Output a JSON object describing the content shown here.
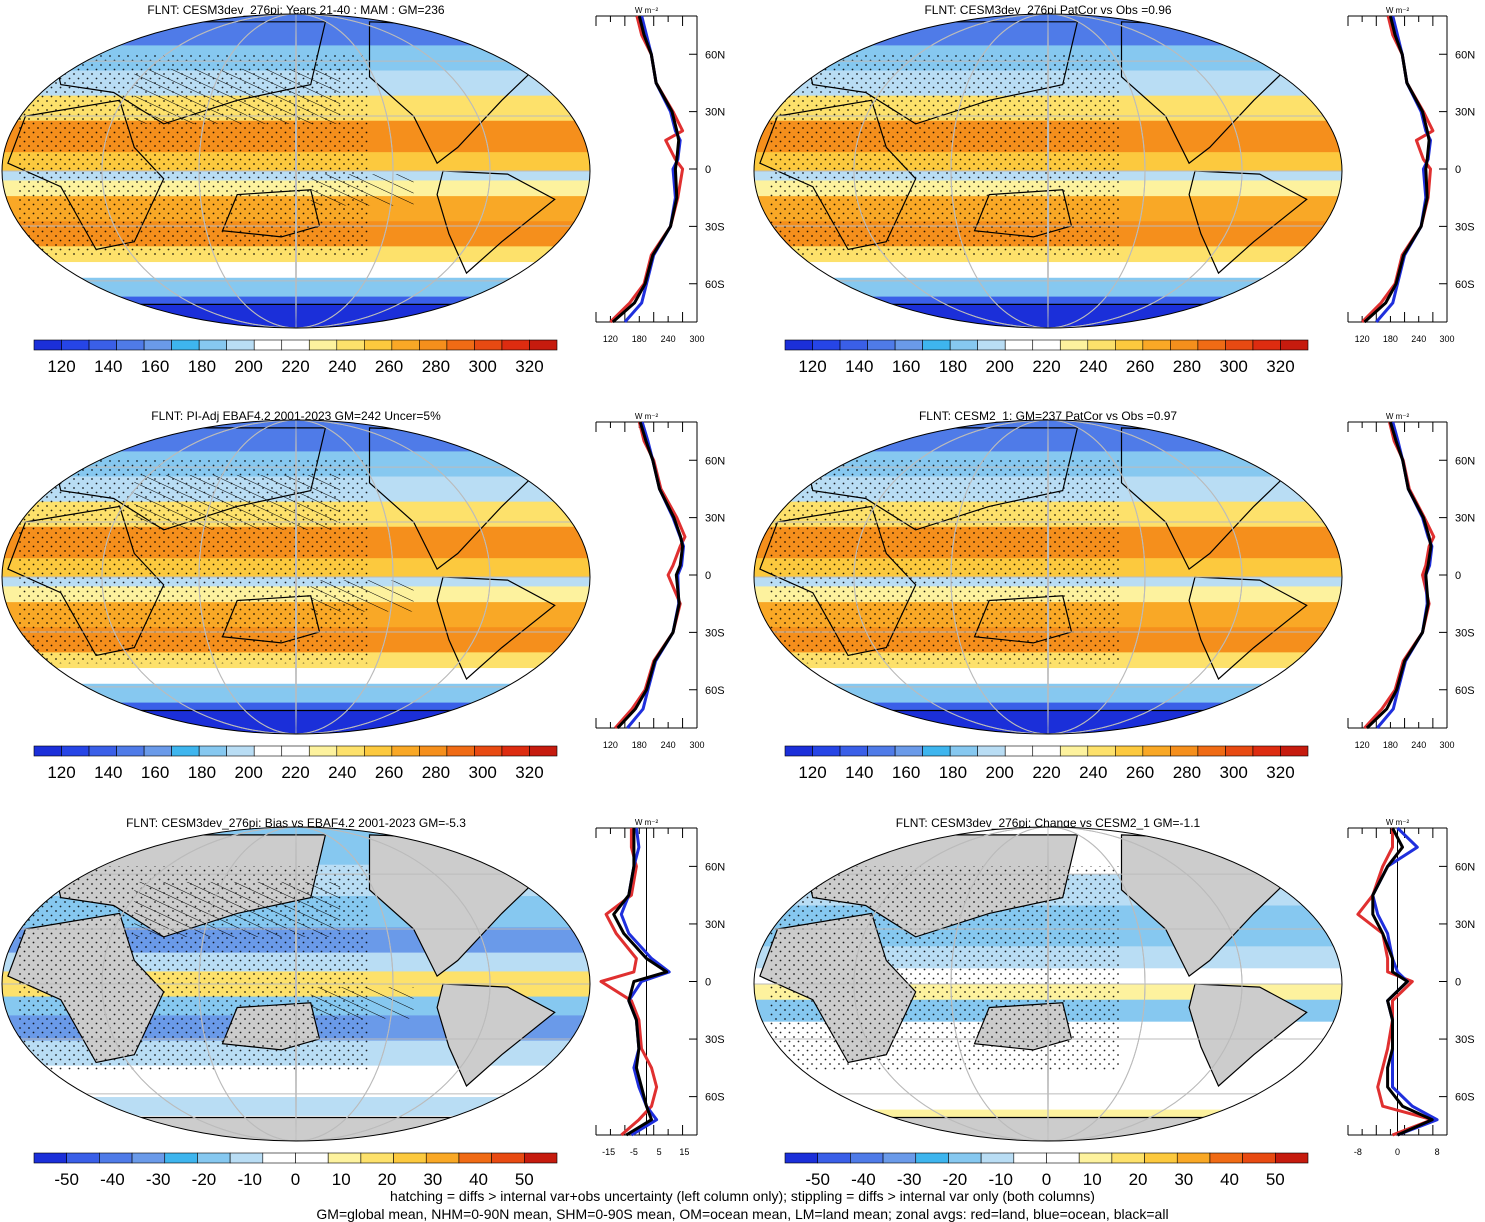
{
  "panels": [
    {
      "id": "p1",
      "title": "FLNT: CESM3dev_276pi: Years 21-40 : MAM : GM=236",
      "hatch": true,
      "cbar": {
        "labels": [
          "120",
          "140",
          "160",
          "180",
          "200",
          "220",
          "240",
          "260",
          "280",
          "300",
          "320"
        ]
      },
      "zonal": {
        "unit": "W m⁻²",
        "xticks": [
          "120",
          "180",
          "240",
          "300"
        ],
        "xlim": [
          90,
          300
        ],
        "lat": [
          -80,
          -70,
          -60,
          -45,
          -30,
          -15,
          0,
          5,
          15,
          20,
          30,
          45,
          60,
          70,
          80
        ],
        "land": [
          120,
          160,
          190,
          205,
          245,
          260,
          270,
          255,
          235,
          270,
          250,
          215,
          205,
          185,
          175
        ],
        "ocean": [
          150,
          185,
          195,
          210,
          245,
          255,
          250,
          260,
          265,
          255,
          245,
          215,
          205,
          195,
          185
        ],
        "all": [
          125,
          170,
          192,
          208,
          245,
          258,
          255,
          258,
          262,
          258,
          248,
          215,
          205,
          190,
          180
        ]
      }
    },
    {
      "id": "p2",
      "title": "FLNT: CESM3dev_276pi PatCor vs Obs =0.96",
      "hatch": false,
      "cbar": {
        "labels": [
          "120",
          "140",
          "160",
          "180",
          "200",
          "220",
          "240",
          "260",
          "280",
          "300",
          "320"
        ]
      },
      "zonal": {
        "unit": "W m⁻²",
        "xticks": [
          "120",
          "180",
          "240",
          "300"
        ],
        "xlim": [
          90,
          300
        ],
        "lat": [
          -80,
          -70,
          -60,
          -45,
          -30,
          -15,
          0,
          5,
          15,
          20,
          30,
          45,
          60,
          70,
          80
        ],
        "land": [
          120,
          160,
          190,
          205,
          245,
          260,
          265,
          250,
          235,
          270,
          250,
          215,
          205,
          185,
          175
        ],
        "ocean": [
          150,
          185,
          195,
          210,
          245,
          255,
          250,
          260,
          265,
          255,
          245,
          215,
          205,
          195,
          185
        ],
        "all": [
          125,
          170,
          192,
          208,
          245,
          258,
          255,
          258,
          262,
          258,
          248,
          215,
          205,
          190,
          180
        ]
      }
    },
    {
      "id": "p3",
      "title": "FLNT: PI-Adj EBAF4.2 2001-2023 GM=242 Uncer=5%",
      "hatch": true,
      "cbar": {
        "labels": [
          "120",
          "140",
          "160",
          "180",
          "200",
          "220",
          "240",
          "260",
          "280",
          "300",
          "320"
        ]
      },
      "zonal": {
        "unit": "W m⁻²",
        "xticks": [
          "120",
          "180",
          "240",
          "300"
        ],
        "xlim": [
          90,
          300
        ],
        "lat": [
          -80,
          -70,
          -60,
          -45,
          -30,
          -15,
          0,
          5,
          15,
          20,
          30,
          45,
          60,
          70,
          80
        ],
        "land": [
          130,
          165,
          192,
          210,
          250,
          265,
          240,
          250,
          265,
          275,
          258,
          225,
          210,
          190,
          180
        ],
        "ocean": [
          155,
          188,
          198,
          214,
          250,
          262,
          260,
          268,
          272,
          265,
          250,
          222,
          208,
          198,
          186
        ],
        "all": [
          135,
          172,
          195,
          212,
          250,
          263,
          257,
          265,
          270,
          266,
          252,
          222,
          208,
          194,
          182
        ]
      }
    },
    {
      "id": "p4",
      "title": "FLNT: CESM2_1: GM=237 PatCor vs Obs =0.97",
      "hatch": false,
      "cbar": {
        "labels": [
          "120",
          "140",
          "160",
          "180",
          "200",
          "220",
          "240",
          "260",
          "280",
          "300",
          "320"
        ]
      },
      "zonal": {
        "unit": "W m⁻²",
        "xticks": [
          "120",
          "180",
          "240",
          "300"
        ],
        "xlim": [
          90,
          300
        ],
        "lat": [
          -80,
          -70,
          -60,
          -45,
          -30,
          -15,
          0,
          5,
          15,
          20,
          30,
          45,
          60,
          70,
          80
        ],
        "land": [
          125,
          162,
          190,
          207,
          248,
          262,
          248,
          255,
          262,
          272,
          252,
          220,
          207,
          188,
          178
        ],
        "ocean": [
          152,
          186,
          196,
          212,
          248,
          258,
          255,
          263,
          268,
          260,
          248,
          218,
          206,
          196,
          185
        ],
        "all": [
          130,
          172,
          193,
          210,
          248,
          260,
          255,
          260,
          266,
          262,
          250,
          218,
          206,
          192,
          180
        ]
      }
    },
    {
      "id": "p5",
      "title": "FLNT: CESM3dev_276pi: Bias vs EBAF4.2 2001-2023 GM=-5.3",
      "hatch": true,
      "cbar": {
        "labels": [
          "-50",
          "-40",
          "-30",
          "-20",
          "-10",
          "0",
          "10",
          "20",
          "30",
          "40",
          "50"
        ]
      },
      "zonal": {
        "unit": "W m⁻²",
        "xticks": [
          "-15",
          "-5",
          "5",
          "15"
        ],
        "xlim": [
          -20,
          20
        ],
        "lat": [
          -80,
          -72,
          -65,
          -55,
          -45,
          -35,
          -20,
          -10,
          0,
          5,
          12,
          25,
          35,
          45,
          60,
          70,
          80
        ],
        "land": [
          -10,
          -3,
          2,
          4,
          2,
          -2,
          -3,
          -6,
          -18,
          -5,
          -4,
          -12,
          -16,
          -6,
          -4,
          -6,
          -6
        ],
        "ocean": [
          -6,
          4,
          0,
          -3,
          -5,
          -3,
          -4,
          -7,
          -2,
          9,
          2,
          -7,
          -10,
          -7,
          -5,
          -3,
          -4
        ],
        "all": [
          -8,
          2,
          0,
          -2,
          -4,
          -3,
          -4,
          -7,
          -5,
          8,
          0,
          -9,
          -13,
          -7,
          -5,
          -5,
          -5
        ]
      }
    },
    {
      "id": "p6",
      "title": "FLNT: CESM3dev_276pi: Change vs CESM2_1 GM=-1.1",
      "hatch": false,
      "cbar": {
        "labels": [
          "-50",
          "-40",
          "-30",
          "-20",
          "-10",
          "0",
          "10",
          "20",
          "30",
          "40",
          "50"
        ]
      },
      "zonal": {
        "unit": "W m⁻²",
        "xticks": [
          "-8",
          "0",
          "8"
        ],
        "xlim": [
          -10,
          10
        ],
        "lat": [
          -80,
          -72,
          -65,
          -55,
          -45,
          -35,
          -20,
          -10,
          0,
          5,
          12,
          25,
          35,
          45,
          60,
          70,
          80
        ],
        "land": [
          -1,
          7,
          -3,
          -4,
          -3,
          -2,
          -1,
          -1,
          3,
          -2,
          -2,
          -3,
          -8,
          -5,
          -3,
          -1,
          -1
        ],
        "ocean": [
          0,
          8,
          3,
          -1,
          -1,
          -1,
          -1,
          -2,
          2,
          0,
          -1,
          -2,
          -4,
          -5,
          -2,
          4,
          0
        ],
        "all": [
          0,
          7,
          1,
          -2,
          -2,
          -1,
          -1,
          -2,
          2,
          -1,
          -1,
          -3,
          -5,
          -5,
          -2,
          1,
          -1
        ]
      }
    }
  ],
  "lat_ticks": [
    "60N",
    "30N",
    "0",
    "30S",
    "60S"
  ],
  "colors": {
    "full": [
      "#1b2fd9",
      "#2645e6",
      "#3a5fe8",
      "#4f7be8",
      "#6a9ae9",
      "#3eb5ee",
      "#86c8f0",
      "#b9ddf4",
      "#ffffff",
      "#ffffff",
      "#fdf29e",
      "#fde16b",
      "#fcc93e",
      "#f9a826",
      "#f58f1c",
      "#f06b15",
      "#e84a12",
      "#dd2c10",
      "#c61b0e"
    ],
    "diff": [
      "#1b2fd9",
      "#3a5fe8",
      "#4f7be8",
      "#6a9ae9",
      "#3eb5ee",
      "#86c8f0",
      "#b9ddf4",
      "#ffffff",
      "#ffffff",
      "#fdf29e",
      "#fde16b",
      "#fcc93e",
      "#f9a826",
      "#f06b15",
      "#e84a12",
      "#c61b0e"
    ],
    "land_grey": "#cccccc",
    "land_line": "#e03030",
    "ocean_line": "#1f2fdd",
    "all_line": "#000000"
  },
  "footer": [
    "hatching = diffs > internal var+obs uncertainty (left column only); stippling = diffs > internal var only (both columns)",
    "GM=global mean, NHM=0-90N mean, SHM=0-90S mean, OM=ocean mean, LM=land mean; zonal avgs: red=land, blue=ocean, black=all"
  ]
}
